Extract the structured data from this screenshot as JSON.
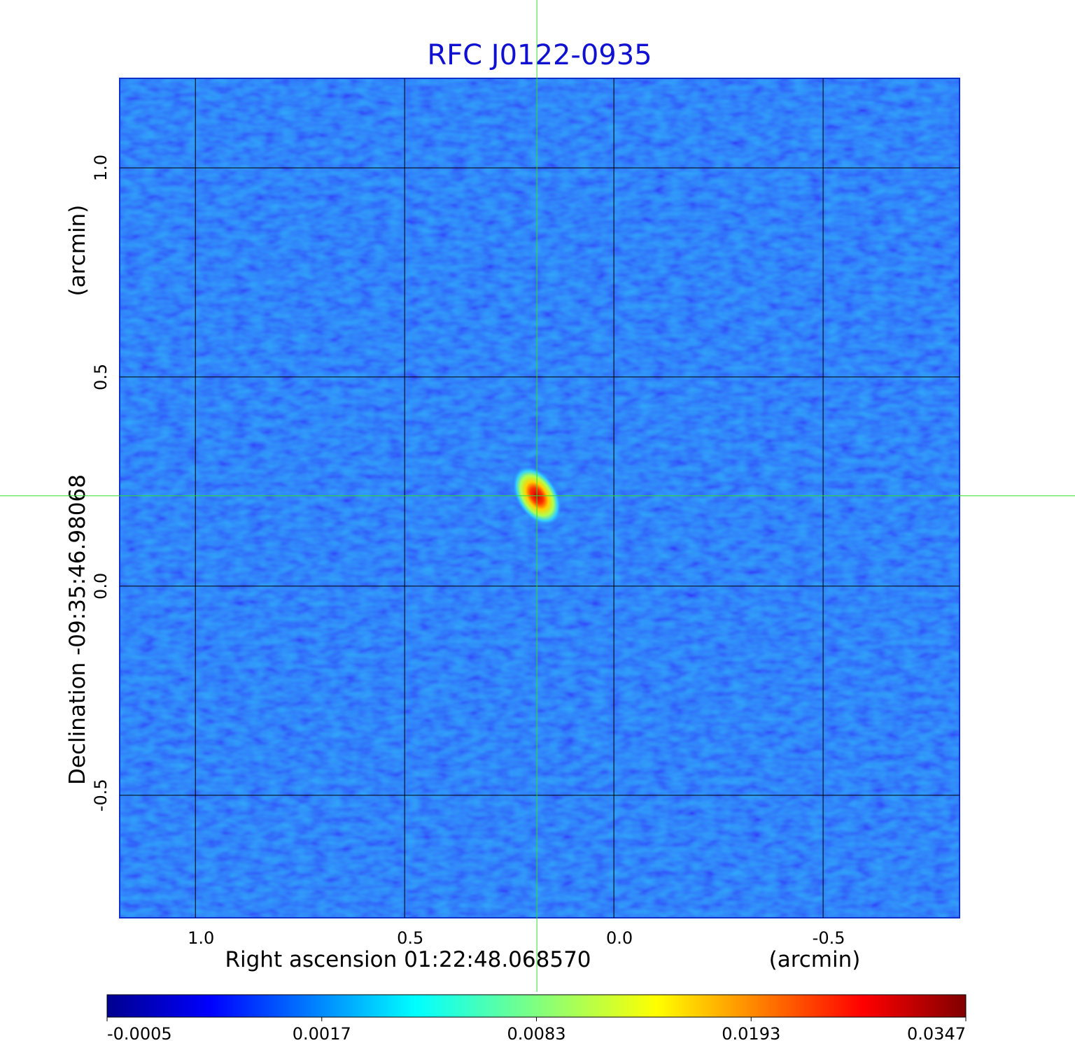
{
  "chart_data": {
    "type": "image",
    "title": "RFC J0122-0935",
    "xlabel": "Right ascension  01:22:48.068570",
    "xunit": "(arcmin)",
    "ylabel": "Declination  -09:35:46.98068",
    "yunit": "(arcmin)",
    "xlim": [
      1.181,
      -0.826
    ],
    "ylim": [
      -0.793,
      1.214
    ],
    "xticks": [
      {
        "value": 1.0,
        "label": "1.0"
      },
      0.5,
      {
        "value": 0.0,
        "label": "0.0"
      },
      -0.5
    ],
    "yticks": [
      -0.5,
      {
        "value": 0.0,
        "label": "0.0"
      },
      0.5,
      {
        "value": 1.0,
        "label": "1.0"
      }
    ],
    "grid": true,
    "source": {
      "x": 0.184,
      "y": 0.216,
      "peak": 0.034
    },
    "colorbar_lim": [
      -0.0005,
      0.0347
    ],
    "colorbar_ticks": [
      -0.0005,
      0.0017,
      0.0083,
      0.0193,
      0.0347
    ]
  }
}
